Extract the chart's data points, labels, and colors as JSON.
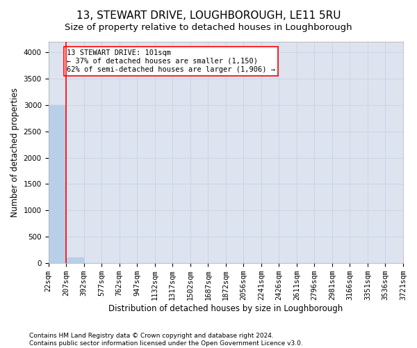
{
  "title": "13, STEWART DRIVE, LOUGHBOROUGH, LE11 5RU",
  "subtitle": "Size of property relative to detached houses in Loughborough",
  "xlabel": "Distribution of detached houses by size in Loughborough",
  "ylabel": "Number of detached properties",
  "footnote1": "Contains HM Land Registry data © Crown copyright and database right 2024.",
  "footnote2": "Contains public sector information licensed under the Open Government Licence v3.0.",
  "annotation_title": "13 STEWART DRIVE: 101sqm",
  "annotation_line1": "← 37% of detached houses are smaller (1,150)",
  "annotation_line2": "62% of semi-detached houses are larger (1,906) →",
  "bar_values": [
    3000,
    110,
    0,
    0,
    0,
    0,
    0,
    0,
    0,
    0,
    0,
    0,
    0,
    0,
    0,
    0,
    0,
    0,
    0,
    0
  ],
  "bar_color": "#b8cfe8",
  "bar_edge_color": "#b8cfe8",
  "categories": [
    "22sqm",
    "207sqm",
    "392sqm",
    "577sqm",
    "762sqm",
    "947sqm",
    "1132sqm",
    "1317sqm",
    "1502sqm",
    "1687sqm",
    "1872sqm",
    "2056sqm",
    "2241sqm",
    "2426sqm",
    "2611sqm",
    "2796sqm",
    "2981sqm",
    "3166sqm",
    "3351sqm",
    "3536sqm",
    "3721sqm"
  ],
  "ylim": [
    0,
    4200
  ],
  "yticks": [
    0,
    500,
    1000,
    1500,
    2000,
    2500,
    3000,
    3500,
    4000
  ],
  "grid_color": "#c8d4e8",
  "bg_color": "#dde4f0",
  "title_fontsize": 11,
  "subtitle_fontsize": 9.5,
  "axis_label_fontsize": 8.5,
  "tick_fontsize": 7.5,
  "footnote_fontsize": 6.5,
  "annot_fontsize": 7.5
}
